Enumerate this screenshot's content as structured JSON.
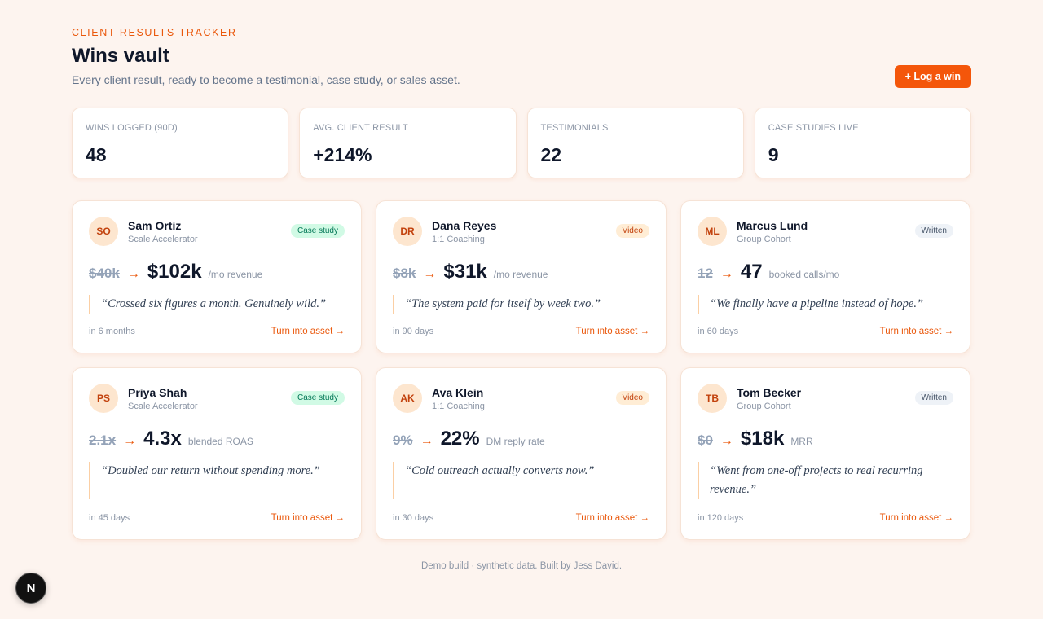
{
  "header": {
    "eyebrow": "CLIENT RESULTS TRACKER",
    "title": "Wins vault",
    "subtitle": "Every client result, ready to become a testimonial, case study, or sales asset.",
    "log_button": "+ Log a win"
  },
  "stats": [
    {
      "label": "WINS LOGGED (90D)",
      "value": "48"
    },
    {
      "label": "AVG. CLIENT RESULT",
      "value": "+214%"
    },
    {
      "label": "TESTIMONIALS",
      "value": "22"
    },
    {
      "label": "CASE STUDIES LIVE",
      "value": "9"
    }
  ],
  "wins": [
    {
      "initials": "SO",
      "name": "Sam Ortiz",
      "program": "Scale Accelerator",
      "badge": "Case study",
      "badge_type": "case",
      "before": "$40k",
      "after": "$102k",
      "unit": "/mo revenue",
      "quote": "“Crossed six figures a month. Genuinely wild.”",
      "when": "in 6 months",
      "cta": "Turn into asset →"
    },
    {
      "initials": "DR",
      "name": "Dana Reyes",
      "program": "1:1 Coaching",
      "badge": "Video",
      "badge_type": "video",
      "before": "$8k",
      "after": "$31k",
      "unit": "/mo revenue",
      "quote": "“The system paid for itself by week two.”",
      "when": "in 90 days",
      "cta": "Turn into asset →"
    },
    {
      "initials": "ML",
      "name": "Marcus Lund",
      "program": "Group Cohort",
      "badge": "Written",
      "badge_type": "written",
      "before": "12",
      "after": "47",
      "unit": "booked calls/mo",
      "quote": "“We finally have a pipeline instead of hope.”",
      "when": "in 60 days",
      "cta": "Turn into asset →"
    },
    {
      "initials": "PS",
      "name": "Priya Shah",
      "program": "Scale Accelerator",
      "badge": "Case study",
      "badge_type": "case",
      "before": "2.1x",
      "after": "4.3x",
      "unit": "blended ROAS",
      "quote": "“Doubled our return without spending more.”",
      "when": "in 45 days",
      "cta": "Turn into asset →"
    },
    {
      "initials": "AK",
      "name": "Ava Klein",
      "program": "1:1 Coaching",
      "badge": "Video",
      "badge_type": "video",
      "before": "9%",
      "after": "22%",
      "unit": "DM reply rate",
      "quote": "“Cold outreach actually converts now.”",
      "when": "in 30 days",
      "cta": "Turn into asset →"
    },
    {
      "initials": "TB",
      "name": "Tom Becker",
      "program": "Group Cohort",
      "badge": "Written",
      "badge_type": "written",
      "before": "$0",
      "after": "$18k",
      "unit": "MRR",
      "quote": "“Went from one-off projects to real recurring revenue.”",
      "when": "in 120 days",
      "cta": "Turn into asset →"
    }
  ],
  "footer": "Demo build · synthetic data. Built by Jess David.",
  "dev_badge": "N",
  "colors": {
    "accent": "#f4560a",
    "background": "#fdf4ef"
  }
}
